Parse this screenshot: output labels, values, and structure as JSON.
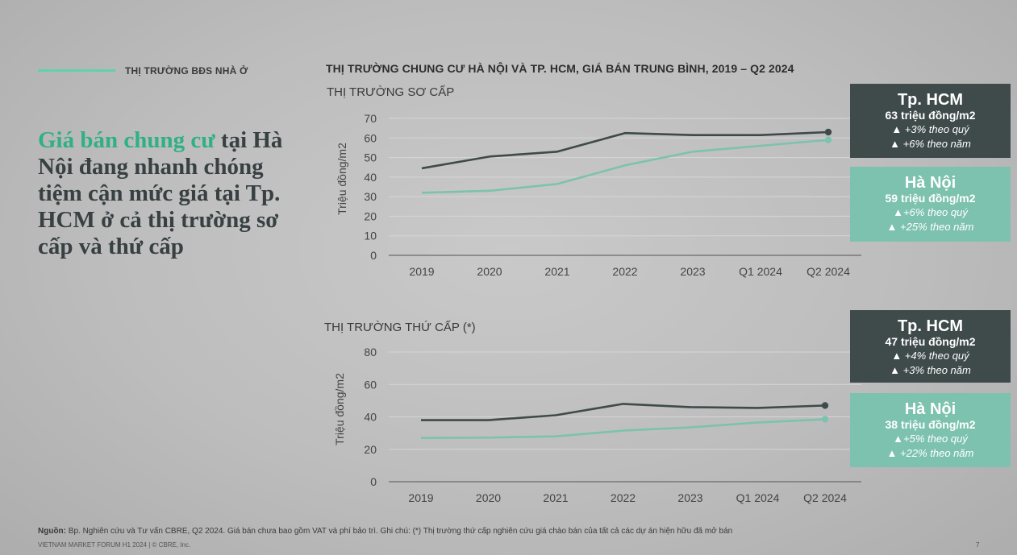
{
  "section": {
    "label": "THỊ TRƯỜNG BĐS NHÀ Ở"
  },
  "headline": {
    "accent": "Giá bán chung cư",
    "rest": " tại Hà Nội đang nhanh chóng tiệm cận mức giá tại Tp. HCM ở cả thị trường sơ cấp và thứ cấp"
  },
  "colors": {
    "hcm": "#3f4a4a",
    "hanoi": "#7dc2ae",
    "accent": "#2fb085"
  },
  "chart_data": [
    {
      "type": "line",
      "title": "THỊ TRƯỜNG CHUNG CƯ HÀ NỘI VÀ TP. HCM, GIÁ BÁN TRUNG BÌNH, 2019 – Q2 2024",
      "subtitle": "THỊ TRƯỜNG SƠ CẤP",
      "ylabel": "Triệu đồng/m2",
      "xlabel": "",
      "categories": [
        "2019",
        "2020",
        "2021",
        "2022",
        "2023",
        "Q1 2024",
        "Q2 2024"
      ],
      "yticks": [
        "0",
        "10",
        "20",
        "30",
        "40",
        "50",
        "60",
        "70"
      ],
      "ylim": [
        0,
        70
      ],
      "grid": true,
      "series": [
        {
          "name": "Tp. HCM",
          "color": "#3f4a4a",
          "values": [
            44.5,
            50.5,
            53,
            62.5,
            61.5,
            61.5,
            63
          ]
        },
        {
          "name": "Hà Nội",
          "color": "#7dc2ae",
          "values": [
            32,
            33,
            36.5,
            46,
            53,
            56,
            59
          ]
        }
      ]
    },
    {
      "type": "line",
      "subtitle": "THỊ TRƯỜNG THỨ CẤP (*)",
      "ylabel": "Triệu đồng/m2",
      "xlabel": "",
      "categories": [
        "2019",
        "2020",
        "2021",
        "2022",
        "2023",
        "Q1 2024",
        "Q2 2024"
      ],
      "yticks": [
        "0",
        "20",
        "40",
        "60",
        "80"
      ],
      "ylim": [
        0,
        80
      ],
      "grid": true,
      "series": [
        {
          "name": "Tp. HCM",
          "color": "#3f4a4a",
          "values": [
            38,
            38,
            41,
            48,
            46,
            45.5,
            47
          ]
        },
        {
          "name": "Hà Nội",
          "color": "#7dc2ae",
          "values": [
            27,
            27.2,
            28,
            31.5,
            33.5,
            36.5,
            38.5
          ]
        }
      ]
    }
  ],
  "callouts": {
    "primary_hcm": {
      "name": "Tp. HCM",
      "price": "63 triệu đồng/m2",
      "qoq": "▲ +3% theo quý",
      "yoy": "▲ +6% theo năm"
    },
    "primary_hn": {
      "name": "Hà Nội",
      "price": "59 triệu đồng/m2",
      "qoq": "▲+6% theo quý",
      "yoy": "▲ +25% theo năm"
    },
    "secondary_hcm": {
      "name": "Tp. HCM",
      "price": "47 triệu đồng/m2",
      "qoq": "▲ +4% theo quý",
      "yoy": "▲ +3% theo năm"
    },
    "secondary_hn": {
      "name": "Hà Nội",
      "price": "38 triệu đồng/m2",
      "qoq": "▲+5% theo quý",
      "yoy": "▲ +22% theo năm"
    }
  },
  "footer": {
    "source_label": "Nguồn:",
    "source_text": " Bp. Nghiên cứu và Tư vấn CBRE, Q2 2024. Giá bán chưa bao gồm VAT và phí bảo trì. Ghi chú: (*) Thị trường thứ cấp nghiên cứu giá chào bán của tất cả các dự án hiện hữu đã mở bán",
    "brand": "VIETNAM MARKET FORUM H1 2024 | © CBRE, Inc.",
    "page": "7"
  }
}
